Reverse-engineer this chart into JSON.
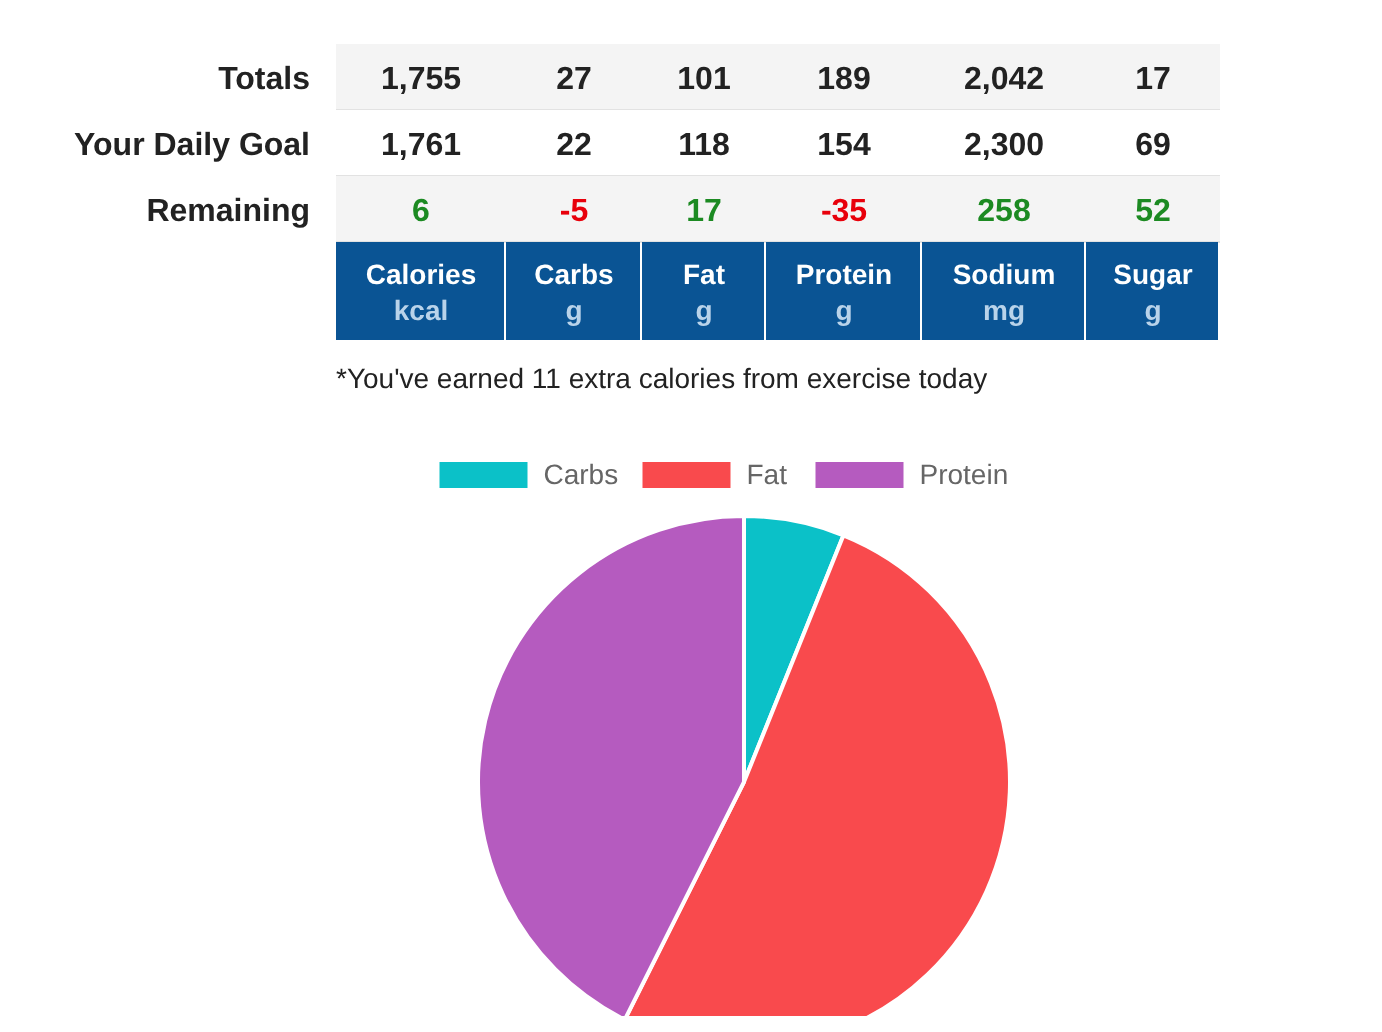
{
  "chart_data": [
    {
      "type": "heatmap",
      "categories": [
        "Calories\nkcal",
        "Carbs\ng",
        "Fat\ng",
        "Protein\ng",
        "Sodium\nmg",
        "Sugar\ng"
      ],
      "y_categories": [
        "Totals",
        "Your Daily Goal",
        "Remaining"
      ],
      "cells": [
        [
          1755,
          27,
          101,
          189,
          2042,
          17
        ],
        [
          1761,
          22,
          118,
          154,
          2300,
          69
        ],
        [
          6,
          -5,
          17,
          -35,
          258,
          52
        ]
      ],
      "cell_labels": [
        [
          "1,755",
          "27",
          "101",
          "189",
          "2,042",
          "17"
        ],
        [
          "1,761",
          "22",
          "118",
          "154",
          "2,300",
          "69"
        ],
        [
          "6",
          "-5",
          "17",
          "-35",
          "258",
          "52"
        ]
      ],
      "annotations": [
        "*You've earned 11 extra calories from exercise today"
      ]
    },
    {
      "type": "pie",
      "categories": [
        "Carbs",
        "Fat",
        "Protein"
      ],
      "values": [
        6.1,
        51.3,
        42.6
      ],
      "colors": [
        "#0bc1c8",
        "#f94a4d",
        "#b55bbf"
      ],
      "legend": "top"
    }
  ]
}
